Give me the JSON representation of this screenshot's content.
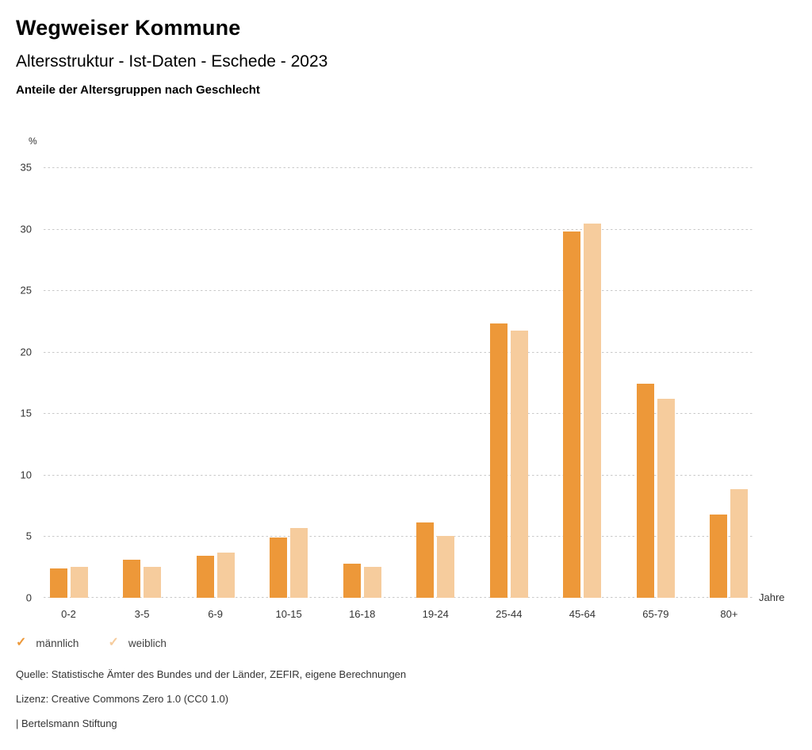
{
  "header": {
    "title": "Wegweiser Kommune",
    "subtitle": "Altersstruktur - Ist-Daten - Eschede - 2023",
    "subsubtitle": "Anteile der Altersgruppen nach Geschlecht"
  },
  "chart_data": {
    "type": "bar",
    "title": "Altersstruktur - Ist-Daten - Eschede - 2023",
    "categories": [
      "0-2",
      "3-5",
      "6-9",
      "10-15",
      "16-18",
      "19-24",
      "25-44",
      "45-64",
      "65-79",
      "80+"
    ],
    "series": [
      {
        "name": "männlich",
        "color": "#ed9839",
        "values": [
          2.4,
          3.1,
          3.4,
          4.9,
          2.8,
          6.1,
          22.3,
          29.8,
          17.4,
          6.8
        ]
      },
      {
        "name": "weiblich",
        "color": "#f6cc9d",
        "values": [
          2.5,
          2.5,
          3.7,
          5.7,
          2.5,
          5.0,
          21.7,
          30.4,
          16.2,
          8.8
        ]
      }
    ],
    "ylabel": "%",
    "xlabel": "Jahre",
    "ylim": [
      0,
      35
    ],
    "yticks": [
      0,
      5,
      10,
      15,
      20,
      25,
      30,
      35
    ],
    "grid": "horizontal-dotted",
    "legend_position": "bottom-left",
    "legend_marker": "✓"
  },
  "footer": {
    "source": "Quelle: Statistische Ämter des Bundes und der Länder, ZEFIR, eigene Berechnungen",
    "license": "Lizenz: Creative Commons Zero 1.0 (CC0 1.0)",
    "brand": "| Bertelsmann Stiftung"
  }
}
